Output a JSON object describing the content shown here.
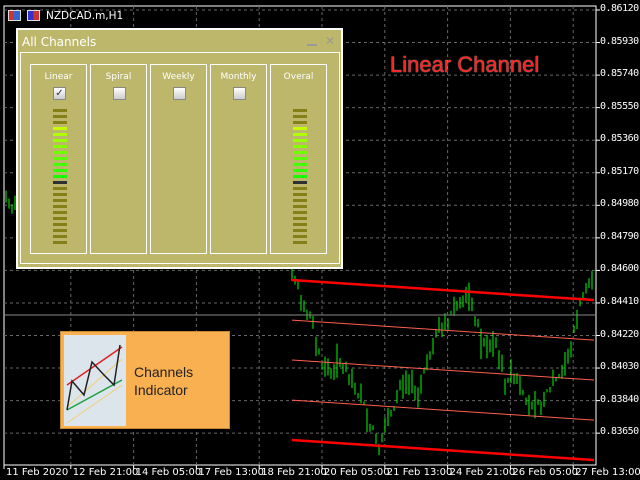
{
  "window": {
    "symbol": "NZDCAD.m,H1"
  },
  "mode_label": "Linear Channel",
  "panel": {
    "title": "All Channels",
    "columns": [
      {
        "label": "Linear",
        "checked": true,
        "meter": true
      },
      {
        "label": "Spiral",
        "checked": false,
        "meter": false
      },
      {
        "label": "Weekly",
        "checked": false,
        "meter": false
      },
      {
        "label": "Monthly",
        "checked": false,
        "meter": false
      },
      {
        "label": "Overal",
        "checked": false,
        "meter": true
      }
    ],
    "meter": {
      "segments": 23,
      "lit_from": 3,
      "lit_to": 11,
      "marker": 12,
      "colors": {
        "off": "#857f18",
        "marker": "#2a3232",
        "lit": [
          "#c4ff00",
          "#b0ff00",
          "#9cff00",
          "#88ff00",
          "#70ff00",
          "#5cff00",
          "#44ff00",
          "#2cff00",
          "#14ff00"
        ]
      }
    }
  },
  "logo": {
    "line1": "Channels",
    "line2": "Indicator"
  },
  "chart_data": {
    "type": "bar",
    "subtype": "ohlc",
    "y_ticks": [
      "0.86120",
      "0.85930",
      "0.85740",
      "0.85550",
      "0.85360",
      "0.85170",
      "0.84980",
      "0.84790",
      "0.84600",
      "0.84410",
      "0.84220",
      "0.84030",
      "0.83840",
      "0.83650"
    ],
    "ylim": [
      0.8317,
      0.862
    ],
    "x_ticks": [
      "11 Feb 2020",
      "12 Feb 21:00",
      "14 Feb 05:00",
      "17 Feb 13:00",
      "18 Feb 21:00",
      "20 Feb 05:00",
      "21 Feb 13:00",
      "24 Feb 21:00",
      "26 Feb 05:00",
      "27 Feb 13:00"
    ],
    "grid": true,
    "bar_color": "#00ff00",
    "current_price": 0.8434,
    "left_prices": [
      0.8503,
      0.85,
      0.8496,
      0.8502,
      0.8508
    ],
    "price_path": [
      0.8463,
      0.8443,
      0.8431,
      0.8408,
      0.8402,
      0.8408,
      0.8396,
      0.8388,
      0.8373,
      0.8361,
      0.8373,
      0.839,
      0.8396,
      0.8388,
      0.8408,
      0.8426,
      0.8431,
      0.8443,
      0.8448,
      0.8431,
      0.8414,
      0.842,
      0.8396,
      0.8402,
      0.839,
      0.8379,
      0.8385,
      0.8396,
      0.8402,
      0.842,
      0.8448,
      0.8454
    ],
    "channel": {
      "color": "#ff0000",
      "lines_start": [
        0.84544,
        0.8431,
        0.84077,
        0.83843,
        0.8361
      ],
      "slope_total": -0.00117
    }
  }
}
